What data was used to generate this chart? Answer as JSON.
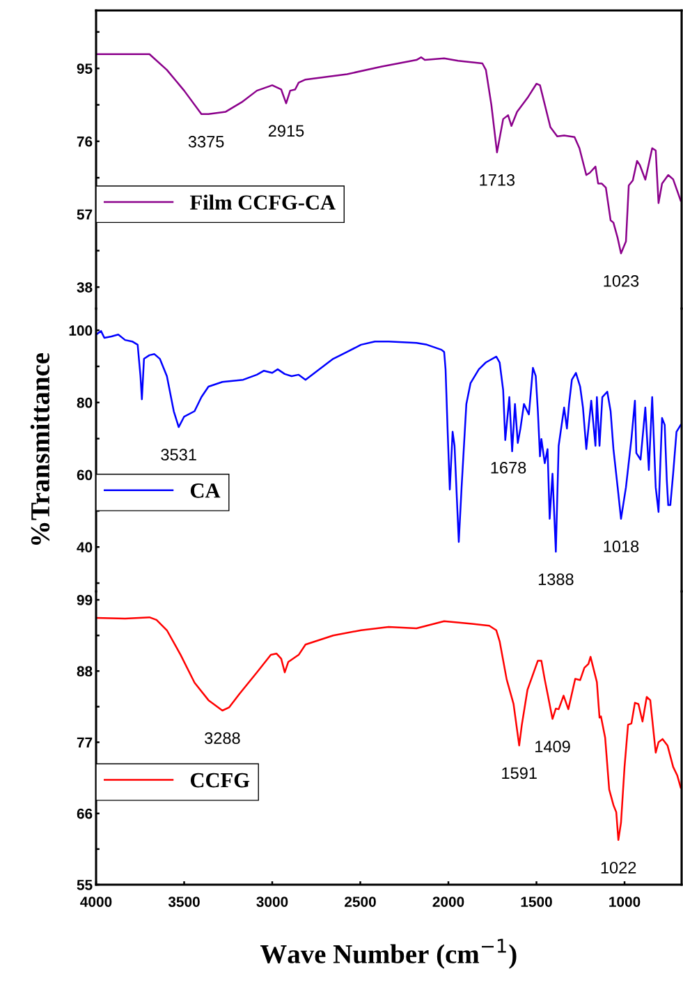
{
  "chart_data": [
    {
      "type": "line",
      "xlim": [
        4000,
        676
      ],
      "ylim": [
        32.4,
        110.1
      ],
      "tick_labels": "y",
      "legend": "left",
      "yticks": [
        95,
        76,
        57,
        38,
        {
          "value": 104.5,
          "label": null
        },
        {
          "value": 85.5,
          "label": null
        },
        {
          "value": 66.5,
          "label": null
        },
        {
          "value": 47.5,
          "label": null
        }
      ],
      "series": [
        {
          "name": "Film CCFG-CA",
          "color": "#8b008b",
          "x": [
            4000,
            3697,
            3598,
            3500,
            3402,
            3362,
            3264,
            3173,
            3087,
            3000,
            2949,
            2921,
            2898,
            2870,
            2850,
            2811,
            2575,
            2378,
            2181,
            2154,
            2134,
            2024,
            1945,
            1807,
            1787,
            1756,
            1724,
            1689,
            1661,
            1642,
            1610,
            1551,
            1500,
            1480,
            1421,
            1382,
            1343,
            1284,
            1256,
            1217,
            1197,
            1165,
            1150,
            1130,
            1106,
            1079,
            1063,
            1039,
            1020,
            992,
            976,
            953,
            929,
            913,
            882,
            843,
            823,
            807,
            787,
            752,
            724,
            681
          ],
          "values": [
            98.7,
            98.7,
            94.6,
            89.2,
            83.1,
            83.1,
            83.7,
            86.2,
            89.2,
            90.6,
            89.5,
            85.9,
            89.2,
            89.5,
            91.3,
            92.1,
            93.5,
            95.5,
            97.2,
            97.9,
            97.2,
            97.6,
            97.0,
            96.3,
            94.6,
            85.5,
            73.1,
            81.8,
            82.8,
            80.0,
            83.7,
            87.3,
            91.0,
            90.6,
            79.7,
            77.3,
            77.5,
            77.1,
            74.2,
            67.2,
            67.8,
            69.4,
            65.0,
            65.0,
            63.9,
            55.4,
            54.8,
            50.8,
            46.8,
            49.9,
            64.5,
            65.8,
            70.9,
            69.8,
            66.0,
            74.2,
            73.6,
            59.9,
            65.0,
            67.2,
            66.1,
            60.5
          ]
        }
      ],
      "annotations": [
        {
          "text": "3375",
          "x": 3375,
          "y": 83.1
        },
        {
          "text": "2915",
          "x": 2921,
          "y": 85.9
        },
        {
          "text": "1713",
          "x": 1724,
          "y": 73.1
        },
        {
          "text": "1023",
          "x": 1020,
          "y": 46.8
        }
      ]
    },
    {
      "type": "line",
      "xlim": [
        4000,
        676
      ],
      "ylim": [
        27.7,
        106.0
      ],
      "tick_labels": "y",
      "legend": "left",
      "ylabel": "%Transmittance",
      "yticks": [
        100,
        80,
        60,
        40,
        {
          "value": 90,
          "label": null
        },
        {
          "value": 70,
          "label": null
        },
        {
          "value": 50,
          "label": null
        },
        {
          "value": 30,
          "label": null
        }
      ],
      "series": [
        {
          "name": "CA",
          "color": "#0000ff",
          "x": [
            4000,
            3972,
            3953,
            3913,
            3874,
            3835,
            3795,
            3764,
            3748,
            3740,
            3728,
            3697,
            3669,
            3638,
            3598,
            3559,
            3531,
            3500,
            3441,
            3402,
            3362,
            3283,
            3165,
            3087,
            3047,
            3000,
            2969,
            2929,
            2890,
            2850,
            2811,
            2732,
            2654,
            2575,
            2496,
            2417,
            2339,
            2181,
            2122,
            2039,
            2024,
            2016,
            2004,
            1992,
            1976,
            1965,
            1941,
            1925,
            1898,
            1874,
            1827,
            1787,
            1728,
            1709,
            1689,
            1677,
            1654,
            1638,
            1622,
            1606,
            1591,
            1571,
            1543,
            1520,
            1504,
            1492,
            1480,
            1472,
            1453,
            1437,
            1425,
            1409,
            1390,
            1374,
            1343,
            1327,
            1315,
            1299,
            1276,
            1252,
            1236,
            1217,
            1189,
            1165,
            1157,
            1142,
            1126,
            1098,
            1079,
            1063,
            1039,
            1020,
            992,
            961,
            941,
            933,
            909,
            882,
            862,
            843,
            823,
            807,
            787,
            772,
            760,
            752,
            740,
            724,
            705,
            681
          ],
          "values": [
            98.8,
            99.8,
            97.9,
            98.3,
            98.8,
            97.3,
            96.9,
            96.0,
            87.3,
            80.9,
            92.1,
            93.1,
            93.4,
            92.1,
            87.3,
            77.6,
            73.2,
            76.1,
            77.6,
            81.5,
            84.4,
            85.7,
            86.3,
            87.7,
            88.8,
            88.2,
            89.2,
            87.9,
            87.3,
            87.7,
            86.3,
            89.2,
            92.1,
            94.0,
            96.0,
            96.9,
            96.9,
            96.5,
            96.0,
            94.6,
            94.0,
            89.2,
            71.9,
            55.9,
            71.9,
            68.0,
            41.4,
            56.5,
            79.6,
            85.4,
            89.2,
            91.1,
            92.7,
            91.1,
            83.4,
            69.6,
            81.5,
            66.5,
            79.6,
            68.8,
            72.8,
            79.6,
            76.7,
            89.6,
            87.3,
            77.6,
            65.1,
            69.9,
            63.2,
            67.1,
            47.8,
            60.3,
            38.7,
            68.0,
            78.6,
            72.8,
            79.6,
            86.3,
            88.2,
            84.4,
            78.6,
            67.1,
            80.5,
            68.0,
            81.5,
            68.0,
            81.5,
            83.0,
            77.6,
            67.1,
            56.5,
            47.8,
            56.5,
            69.9,
            80.5,
            66.0,
            64.2,
            78.6,
            61.3,
            81.5,
            56.5,
            49.7,
            75.7,
            73.8,
            58.4,
            51.6,
            51.6,
            60.3,
            71.9,
            73.8
          ]
        }
      ],
      "annotations": [
        {
          "text": "3531",
          "x": 3531,
          "y": 73.2
        },
        {
          "text": "1678",
          "x": 1660,
          "y": 69.6
        },
        {
          "text": "1388",
          "x": 1390,
          "y": 38.7
        },
        {
          "text": "1018",
          "x": 1020,
          "y": 47.8
        }
      ]
    },
    {
      "type": "line",
      "xlim": [
        4000,
        676
      ],
      "ylim": [
        55,
        100.3
      ],
      "legend": "left",
      "xlabel": "Wave Number (cm$^{−1}$)",
      "xticks": [
        4000,
        3500,
        3000,
        2500,
        2000,
        1500,
        1000
      ],
      "yticks": [
        99,
        88,
        77,
        66,
        55,
        {
          "value": 93.5,
          "label": null
        },
        {
          "value": 82.5,
          "label": null
        },
        {
          "value": 71.5,
          "label": null
        },
        {
          "value": 60.5,
          "label": null
        }
      ],
      "series": [
        {
          "name": "CCFG",
          "color": "#ff0000",
          "x": [
            4000,
            3835,
            3697,
            3657,
            3598,
            3520,
            3441,
            3362,
            3283,
            3244,
            3185,
            3087,
            3008,
            2976,
            2949,
            2929,
            2909,
            2850,
            2811,
            2654,
            2496,
            2339,
            2181,
            2024,
            1866,
            1768,
            1728,
            1709,
            1669,
            1630,
            1598,
            1583,
            1551,
            1492,
            1472,
            1453,
            1437,
            1409,
            1390,
            1374,
            1346,
            1319,
            1280,
            1252,
            1228,
            1205,
            1193,
            1157,
            1142,
            1134,
            1110,
            1087,
            1063,
            1047,
            1035,
            1020,
            1000,
            980,
            961,
            941,
            921,
            898,
            874,
            854,
            823,
            807,
            784,
            756,
            724,
            701,
            681
          ],
          "values": [
            96.2,
            96.1,
            96.3,
            95.9,
            94.3,
            90.5,
            86.2,
            83.5,
            81.9,
            82.4,
            84.5,
            87.8,
            90.5,
            90.7,
            89.9,
            87.8,
            89.4,
            90.5,
            92.1,
            93.5,
            94.3,
            94.8,
            94.6,
            95.7,
            95.3,
            95.0,
            94.3,
            92.6,
            86.7,
            82.9,
            76.5,
            79.7,
            85.1,
            89.6,
            89.6,
            86.7,
            84.5,
            80.6,
            82.2,
            82.1,
            84.2,
            82.1,
            86.8,
            86.6,
            88.5,
            89.1,
            90.2,
            86.3,
            80.8,
            81.0,
            77.7,
            69.7,
            67.3,
            66.2,
            61.9,
            64.6,
            73.2,
            79.7,
            79.9,
            83.1,
            82.9,
            80.2,
            84.0,
            83.5,
            75.4,
            77.0,
            77.5,
            76.5,
            73.2,
            71.9,
            70.0
          ]
        }
      ],
      "annotations": [
        {
          "text": "3288",
          "x": 3283,
          "y": 81.9
        },
        {
          "text": "1591",
          "x": 1598,
          "y": 76.5
        },
        {
          "text": "1409",
          "x": 1409,
          "y": 80.6
        },
        {
          "text": "1022",
          "x": 1035,
          "y": 61.9
        }
      ]
    }
  ]
}
